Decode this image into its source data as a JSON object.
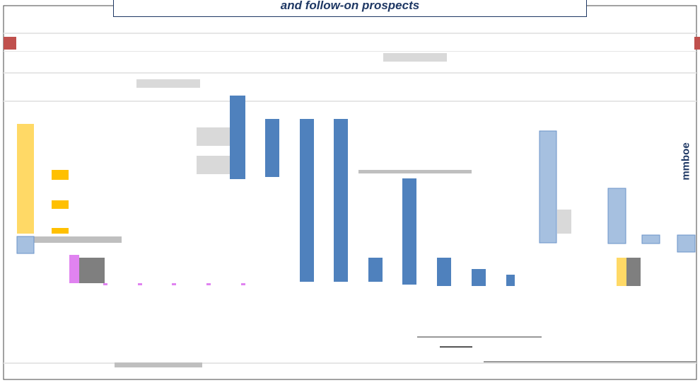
{
  "title": "and follow-on prospects",
  "unit_label": "mmboe"
}
